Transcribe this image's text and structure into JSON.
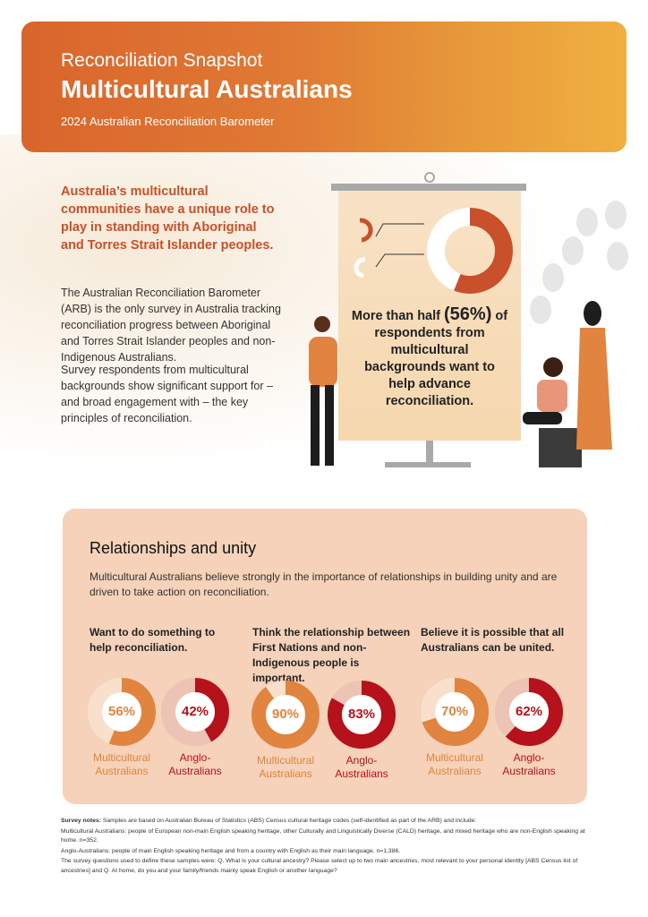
{
  "header": {
    "supertitle": "Reconciliation Snapshot",
    "title": "Multicultural Australians",
    "subtitle": "2024 Australian Reconciliation Barometer"
  },
  "intro": {
    "lead": "Australia’s multicultural communities have a unique role to play in standing with Aboriginal and Torres Strait Islander peoples.",
    "para1": "The Australian Reconciliation Barometer (ARB) is the only survey in Australia tracking reconciliation progress between Aboriginal and Torres Strait Islander peoples and non-Indigenous Australians.",
    "para2": "Survey respondents from multicultural backgrounds show significant support for – and broad engagement with – the key principles of reconciliation."
  },
  "poster": {
    "line1": "More than half",
    "highlight": "(56%)",
    "line2": "of respondents from multicultural backgrounds want to help advance reconciliation.",
    "value": 56
  },
  "colors": {
    "orange": "#e0843f",
    "red": "#b5121b",
    "orange_light": "#f8e0cc",
    "red_light": "#ecc3b4",
    "poster_donut": "#c8502a"
  },
  "section": {
    "title": "Relationships and unity",
    "intro": "Multicultural Australians believe strongly in the importance of relationships in building unity and are driven to take action on reconciliation.",
    "questions": [
      {
        "text": "Want to do something to help reconciliation.",
        "multicultural": {
          "value": 56,
          "label": "56%"
        },
        "anglo": {
          "value": 42,
          "label": "42%"
        }
      },
      {
        "text": "Think the relationship between First Nations and non-Indigenous people is important.",
        "multicultural": {
          "value": 90,
          "label": "90%"
        },
        "anglo": {
          "value": 83,
          "label": "83%"
        }
      },
      {
        "text": "Believe it is possible that all Australians can be united.",
        "multicultural": {
          "value": 70,
          "label": "70%"
        },
        "anglo": {
          "value": 62,
          "label": "62%"
        }
      }
    ],
    "group_multicultural": "Multicultural Australians",
    "group_anglo": "Anglo-Australians"
  },
  "notes": {
    "label": "Survey notes:",
    "line1": "Samples are based on Australian Bureau of Statistics (ABS) Census cultural heritage codes (self-identified as part of the ARB) and include:",
    "line2": "Multicultural Australians: people of European non-main English speaking heritage, other Culturally and Linguistically Diverse (CALD) heritage, and mixed heritage who are non-English speaking at home. n=352.",
    "line3": "Anglo-Australians: people of main English speaking heritage and from a country with English as their main language. n=1,386.",
    "line4": "The survey questions used to define these samples were: Q. What is your cultural ancestry? Please select up to two main ancestries, most relevant to your personal identity [ABS Census list of ancestries] and Q. At home, do you and your family/friends mainly speak English or another language?"
  }
}
